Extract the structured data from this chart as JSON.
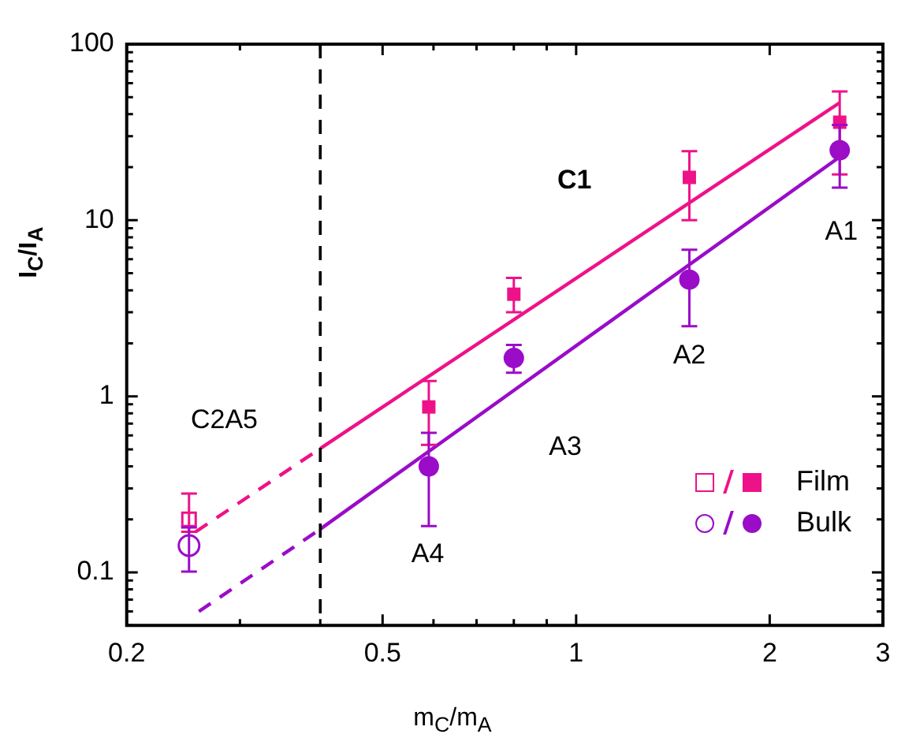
{
  "chart_data": {
    "type": "scatter",
    "xlabel": "m$_{C}$/m$_{A}$",
    "ylabel": "I$_{C}$/I$_{A}$",
    "log": "xy",
    "legend": "bottom right",
    "xlim": [
      0.2,
      3
    ],
    "xticks": [
      0.2,
      {
        "value": 0.3,
        "label": null
      },
      {
        "value": 0.4,
        "label": null
      },
      0.5,
      {
        "value": 0.6,
        "label": null
      },
      {
        "value": 0.7,
        "label": null
      },
      {
        "value": 0.8,
        "label": null
      },
      {
        "value": 0.9,
        "label": null
      },
      1,
      2,
      3
    ],
    "ylim": [
      0.05,
      100
    ],
    "yticks": [
      {
        "value": 0.05,
        "label": null
      },
      {
        "value": 0.06,
        "label": null
      },
      {
        "value": 0.07,
        "label": null
      },
      {
        "value": 0.08,
        "label": null
      },
      {
        "value": 0.09,
        "label": null
      },
      0.1,
      {
        "value": 0.2,
        "label": null
      },
      {
        "value": 0.3,
        "label": null
      },
      {
        "value": 0.4,
        "label": null
      },
      {
        "value": 0.5,
        "label": null
      },
      {
        "value": 0.6,
        "label": null
      },
      {
        "value": 0.7,
        "label": null
      },
      {
        "value": 0.8,
        "label": null
      },
      {
        "value": 0.9,
        "label": null
      },
      1,
      {
        "value": 2,
        "label": null
      },
      {
        "value": 3,
        "label": null
      },
      {
        "value": 4,
        "label": null
      },
      {
        "value": 5,
        "label": null
      },
      {
        "value": 6,
        "label": null
      },
      {
        "value": 7,
        "label": null
      },
      {
        "value": 8,
        "label": null
      },
      {
        "value": 9,
        "label": null
      },
      10,
      {
        "value": 20,
        "label": null
      },
      {
        "value": 30,
        "label": null
      },
      {
        "value": 40,
        "label": null
      },
      {
        "value": 50,
        "label": null
      },
      {
        "value": 60,
        "label": null
      },
      {
        "value": 70,
        "label": null
      },
      {
        "value": 80,
        "label": null
      },
      {
        "value": 90,
        "label": null
      },
      100
    ],
    "series": [
      {
        "name": "Film",
        "marker": "square",
        "color": "#ee1289",
        "x": [
          0.59,
          0.8,
          1.5,
          2.57
        ],
        "values": [
          0.87,
          3.8,
          17.5,
          36
        ],
        "errors": [
          [
            0.53,
            1.22
          ],
          [
            3.0,
            4.7
          ],
          [
            10,
            24.7
          ],
          [
            18.2,
            53.8
          ]
        ]
      },
      {
        "name": "Bulk",
        "marker": "circle",
        "color": "#9a0cc8",
        "x": [
          0.59,
          0.8,
          1.5,
          2.57
        ],
        "values": [
          0.4,
          1.65,
          4.6,
          25
        ],
        "errors": [
          [
            0.183,
            0.62
          ],
          [
            1.36,
            1.96
          ],
          [
            2.5,
            6.8
          ],
          [
            15.3,
            34.8
          ]
        ]
      },
      {
        "marker": "square",
        "color": "#ee1289",
        "x": [
          0.25
        ],
        "values": [
          0.2
        ],
        "errors": [
          [
            0.17,
            0.28
          ]
        ]
      },
      {
        "marker": "circle",
        "color": "#9a0cc8",
        "x": [
          0.25
        ],
        "values": [
          0.142
        ],
        "errors": [
          [
            0.101,
            0.18
          ]
        ]
      },
      {
        "type": "line",
        "marker": "none",
        "line_style": "solid",
        "color": "#ee1289",
        "x": [
          0.4,
          2.57
        ],
        "values": [
          0.505,
          46.5
        ]
      },
      {
        "type": "line",
        "marker": "none",
        "line_style": "dashed",
        "color": "#ee1289",
        "x": [
          0.256,
          0.4
        ],
        "values": [
          0.17,
          0.505
        ]
      },
      {
        "type": "line",
        "marker": "none",
        "line_style": "solid",
        "color": "#9a0cc8",
        "x": [
          0.4,
          2.57
        ],
        "values": [
          0.176,
          22.9
        ]
      },
      {
        "type": "line",
        "marker": "none",
        "line_style": "dashed",
        "color": "#9a0cc8",
        "x": [
          0.259,
          0.4
        ],
        "values": [
          0.06,
          0.176
        ]
      }
    ],
    "ref_lines": [
      {
        "axis": "x",
        "value": 0.4,
        "color": "#000000",
        "line_style": "dashed"
      }
    ],
    "annotations": [
      "C1",
      "A1",
      "A2",
      "A3",
      "A4",
      "C2A5"
    ]
  }
}
